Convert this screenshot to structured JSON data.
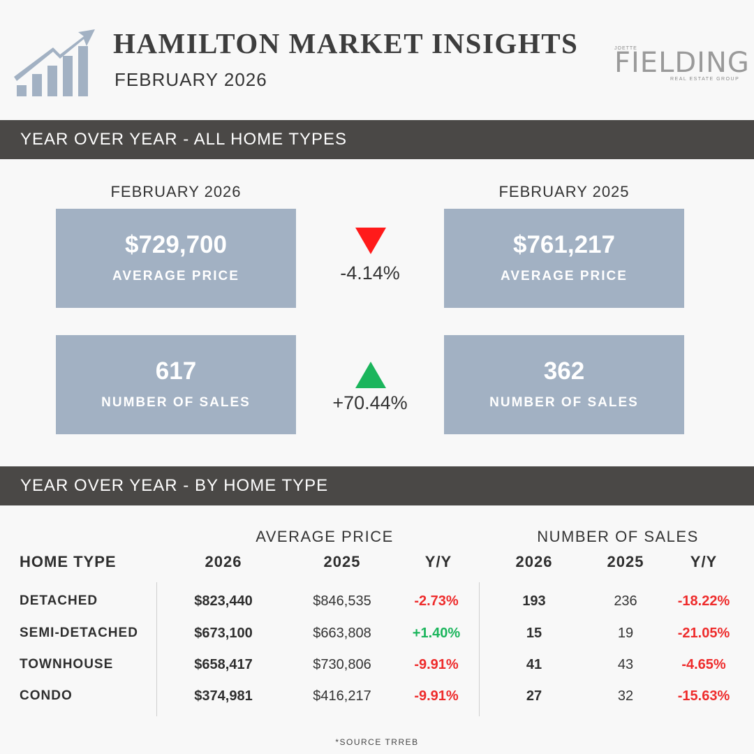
{
  "header": {
    "title": "HAMILTON MARKET INSIGHTS",
    "subtitle": "FEBRUARY 2026",
    "brand_top": "JOETTE",
    "brand": "FIELDING",
    "brand_sub": "REAL ESTATE GROUP",
    "logo_icon": "rising-bar-chart-arrow-icon",
    "logo_color": "#a2b1c3"
  },
  "section1": {
    "title": "YEAR OVER YEAR - ALL HOME TYPES",
    "year_current": "FEBRUARY 2026",
    "year_previous": "FEBRUARY 2025",
    "price_current": {
      "value": "$729,700",
      "label": "AVERAGE PRICE"
    },
    "price_previous": {
      "value": "$761,217",
      "label": "AVERAGE PRICE"
    },
    "price_change": "-4.14%",
    "sales_current": {
      "value": "617",
      "label": "NUMBER OF SALES"
    },
    "sales_previous": {
      "value": "362",
      "label": "NUMBER OF SALES"
    },
    "sales_change": "+70.44%",
    "down_color": "#ff1a1a",
    "up_color": "#1bb55c"
  },
  "section2": {
    "title": "YEAR OVER YEAR - BY HOME TYPE",
    "group_price": "AVERAGE PRICE",
    "group_sales": "NUMBER OF SALES",
    "headers": {
      "type": "HOME TYPE",
      "p26": "2026",
      "p25": "2025",
      "pyy": "Y/Y",
      "s26": "2026",
      "s25": "2025",
      "syy": "Y/Y"
    },
    "rows": [
      {
        "type": "DETACHED",
        "p26": "$823,440",
        "p25": "$846,535",
        "pyy": "-2.73%",
        "s26": "193",
        "s25": "236",
        "syy": "-18.22%"
      },
      {
        "type": "SEMI-DETACHED",
        "p26": "$673,100",
        "p25": "$663,808",
        "pyy": "+1.40%",
        "s26": "15",
        "s25": "19",
        "syy": "-21.05%"
      },
      {
        "type": "TOWNHOUSE",
        "p26": "$658,417",
        "p25": "$730,806",
        "pyy": "-9.91%",
        "s26": "41",
        "s25": "43",
        "syy": "-4.65%"
      },
      {
        "type": "CONDO",
        "p26": "$374,981",
        "p25": "$416,217",
        "pyy": "-9.91%",
        "s26": "27",
        "s25": "32",
        "syy": "-15.63%"
      }
    ]
  },
  "footer": {
    "source": "*SOURCE TRREB"
  }
}
